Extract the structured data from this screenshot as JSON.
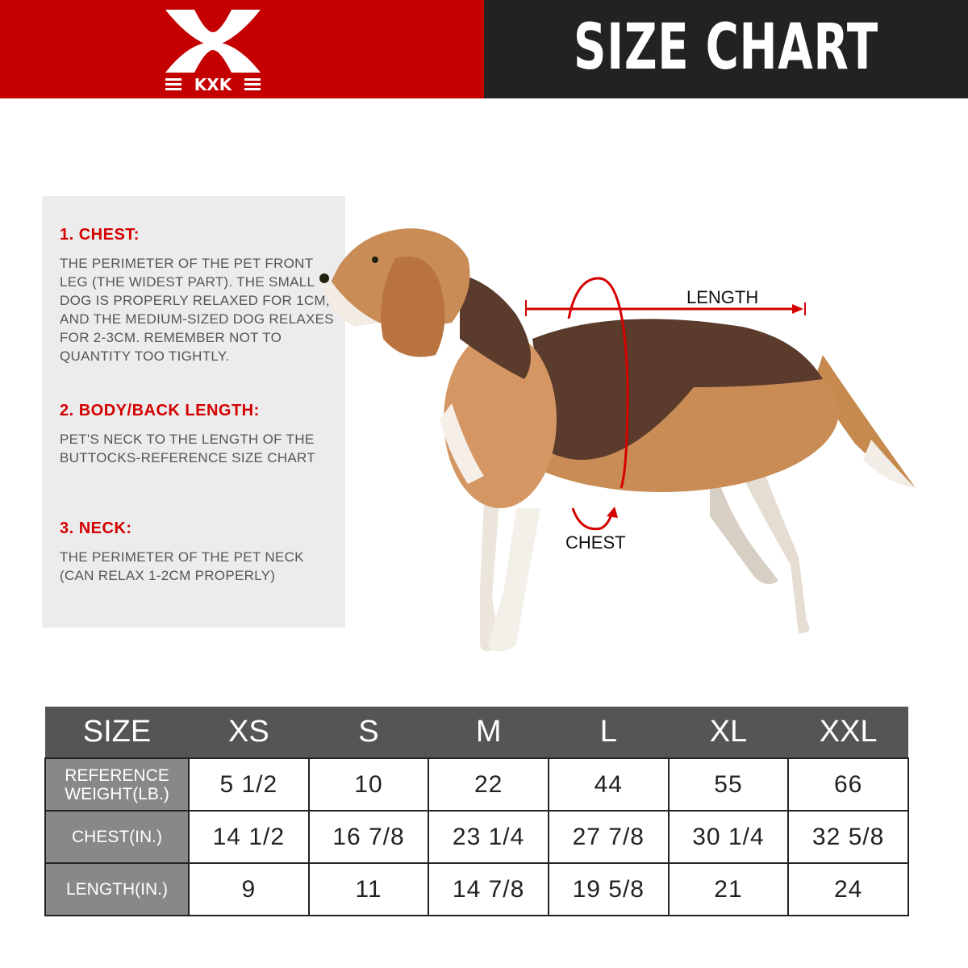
{
  "header": {
    "brand": "KXK",
    "title": "SIZE CHART",
    "brand_color": "#c40000",
    "title_bg": "#222222"
  },
  "guide": [
    {
      "heading": "1. CHEST:",
      "text": "THE PERIMETER OF THE PET FRONT LEG (THE WIDEST PART). THE SMALL DOG IS PROPERLY RELAXED FOR 1CM, AND THE MEDIUM-SIZED DOG RELAXES FOR 2-3CM. REMEMBER NOT TO QUANTITY TOO TIGHTLY."
    },
    {
      "heading": "2. BODY/BACK LENGTH:",
      "text": "PET'S NECK TO THE LENGTH OF THE BUTTOCKS-REFERENCE SIZE CHART"
    },
    {
      "heading": "3. NECK:",
      "text": "THE PERIMETER OF THE PET NECK (CAN RELAX 1-2CM PROPERLY)"
    }
  ],
  "diagram": {
    "length_label": "LENGTH",
    "chest_label": "CHEST"
  },
  "table": {
    "headers": [
      "SIZE",
      "XS",
      "S",
      "M",
      "L",
      "XL",
      "XXL"
    ],
    "rows": [
      {
        "label": "REFERENCE WEIGHT(LB.)",
        "values": [
          "5 1/2",
          "10",
          "22",
          "44",
          "55",
          "66"
        ]
      },
      {
        "label": "CHEST(IN.)",
        "values": [
          "14 1/2",
          "16 7/8",
          "23 1/4",
          "27 7/8",
          "30 1/4",
          "32 5/8"
        ]
      },
      {
        "label": "LENGTH(IN.)",
        "values": [
          "9",
          "11",
          "14 7/8",
          "19 5/8",
          "21",
          "24"
        ]
      }
    ]
  }
}
